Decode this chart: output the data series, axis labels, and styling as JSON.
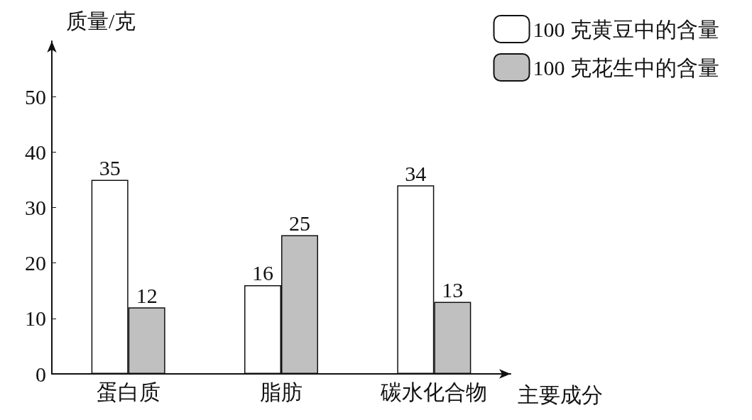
{
  "chart_data": {
    "type": "bar",
    "xlabel": "主要成分",
    "ylabel": "质量/克",
    "categories": [
      "蛋白质",
      "脂肪",
      "碳水化合物"
    ],
    "series": [
      {
        "name": "100 克黄豆中的含量",
        "color": "#ffffff",
        "values": [
          35,
          16,
          34
        ]
      },
      {
        "name": "100 克花生中的含量",
        "color": "#c0c0c0",
        "values": [
          12,
          25,
          13
        ]
      }
    ],
    "ylim": [
      0,
      60
    ],
    "yticks": [
      0,
      10,
      20,
      30,
      40,
      50
    ],
    "grid": false,
    "legend": "top right",
    "data_labels": true
  }
}
